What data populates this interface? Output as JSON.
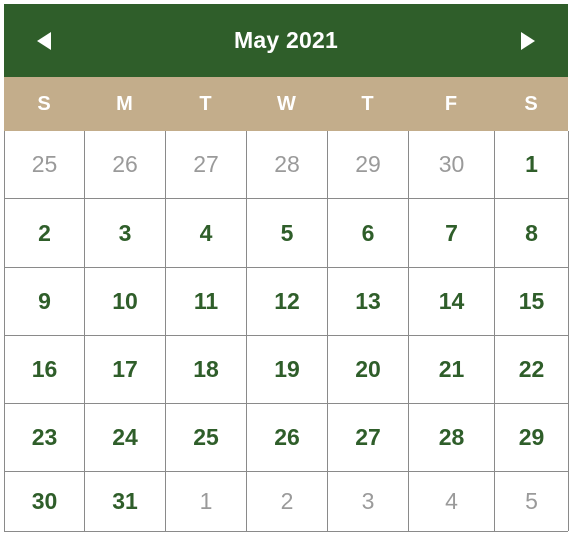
{
  "header": {
    "title": "May 2021",
    "prev_icon": "triangle-left",
    "next_icon": "triangle-right"
  },
  "weekdays": [
    "S",
    "M",
    "T",
    "W",
    "T",
    "F",
    "S"
  ],
  "weeks": [
    [
      {
        "day": "25",
        "in_month": false
      },
      {
        "day": "26",
        "in_month": false
      },
      {
        "day": "27",
        "in_month": false
      },
      {
        "day": "28",
        "in_month": false
      },
      {
        "day": "29",
        "in_month": false
      },
      {
        "day": "30",
        "in_month": false
      },
      {
        "day": "1",
        "in_month": true
      }
    ],
    [
      {
        "day": "2",
        "in_month": true
      },
      {
        "day": "3",
        "in_month": true
      },
      {
        "day": "4",
        "in_month": true
      },
      {
        "day": "5",
        "in_month": true
      },
      {
        "day": "6",
        "in_month": true
      },
      {
        "day": "7",
        "in_month": true
      },
      {
        "day": "8",
        "in_month": true
      }
    ],
    [
      {
        "day": "9",
        "in_month": true
      },
      {
        "day": "10",
        "in_month": true
      },
      {
        "day": "11",
        "in_month": true
      },
      {
        "day": "12",
        "in_month": true
      },
      {
        "day": "13",
        "in_month": true
      },
      {
        "day": "14",
        "in_month": true
      },
      {
        "day": "15",
        "in_month": true
      }
    ],
    [
      {
        "day": "16",
        "in_month": true
      },
      {
        "day": "17",
        "in_month": true
      },
      {
        "day": "18",
        "in_month": true
      },
      {
        "day": "19",
        "in_month": true
      },
      {
        "day": "20",
        "in_month": true
      },
      {
        "day": "21",
        "in_month": true
      },
      {
        "day": "22",
        "in_month": true
      }
    ],
    [
      {
        "day": "23",
        "in_month": true
      },
      {
        "day": "24",
        "in_month": true
      },
      {
        "day": "25",
        "in_month": true
      },
      {
        "day": "26",
        "in_month": true
      },
      {
        "day": "27",
        "in_month": true
      },
      {
        "day": "28",
        "in_month": true
      },
      {
        "day": "29",
        "in_month": true
      }
    ],
    [
      {
        "day": "30",
        "in_month": true
      },
      {
        "day": "31",
        "in_month": true
      },
      {
        "day": "1",
        "in_month": false
      },
      {
        "day": "2",
        "in_month": false
      },
      {
        "day": "3",
        "in_month": false
      },
      {
        "day": "4",
        "in_month": false
      },
      {
        "day": "5",
        "in_month": false
      }
    ]
  ],
  "colors": {
    "header_bg": "#2f5e2a",
    "weekday_bg": "#c3ad8b",
    "current_month_text": "#2f5e2a",
    "other_month_text": "#9a9a9a",
    "grid_line": "#8a8a8a"
  }
}
